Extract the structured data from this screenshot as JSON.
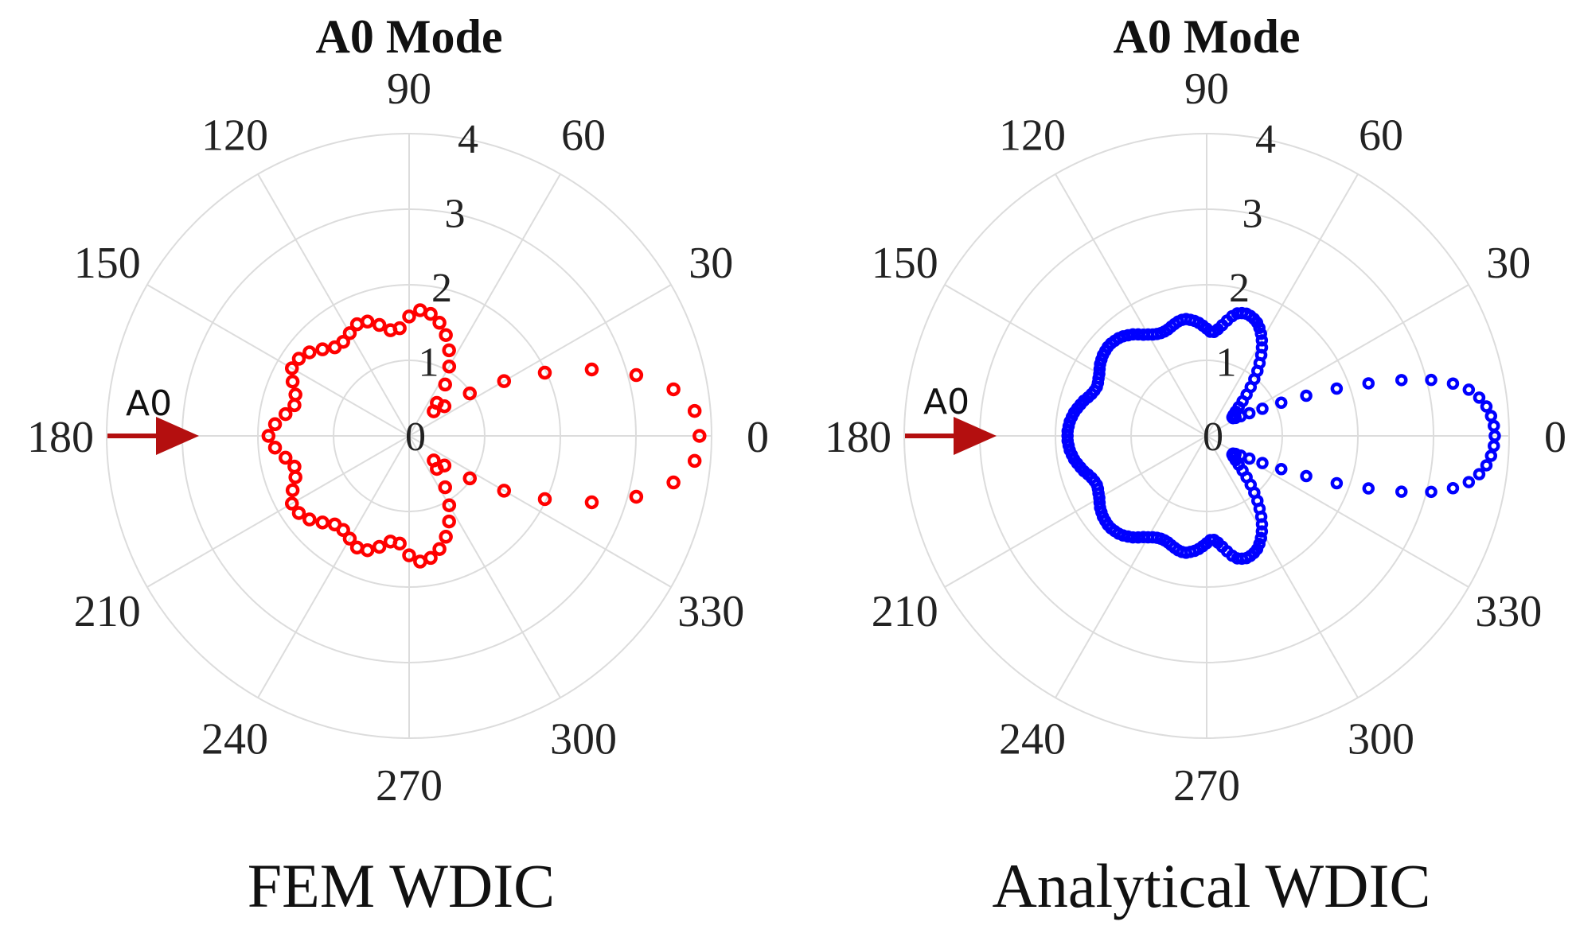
{
  "chart_data": [
    {
      "type": "scatter",
      "projection": "polar",
      "title": "A0 Mode",
      "caption": "FEM WDIC",
      "incident_wave": {
        "label": "A0",
        "direction_deg": 180,
        "color": "#b40f0f"
      },
      "rlim": [
        0,
        4
      ],
      "r_ticks": [
        "0",
        "1",
        "2",
        "3",
        "4"
      ],
      "theta_ticks": [
        "0",
        "30",
        "60",
        "90",
        "120",
        "150",
        "180",
        "210",
        "240",
        "270",
        "300",
        "330"
      ],
      "grid": true,
      "series": [
        {
          "name": "FEM WDIC",
          "marker": "open-circle",
          "color": "#ff0000",
          "theta_deg": [
            0,
            5,
            10,
            15,
            20,
            25,
            30,
            35,
            40,
            45,
            50,
            55,
            60,
            65,
            70,
            75,
            80,
            85,
            90,
            95,
            100,
            105,
            110,
            115,
            120,
            125,
            130,
            135,
            140,
            145,
            150,
            155,
            160,
            165,
            170,
            175,
            180,
            185,
            190,
            195,
            200,
            205,
            210,
            215,
            220,
            225,
            230,
            235,
            240,
            245,
            250,
            255,
            260,
            265,
            270,
            275,
            280,
            285,
            290,
            295,
            300,
            305,
            310,
            315,
            320,
            325,
            330,
            335,
            340,
            345,
            350,
            355
          ],
          "r": [
            3.84,
            3.79,
            3.55,
            3.11,
            2.57,
            1.98,
            1.45,
            0.98,
            0.61,
            0.46,
            0.57,
            0.83,
            1.06,
            1.25,
            1.42,
            1.55,
            1.64,
            1.67,
            1.58,
            1.43,
            1.42,
            1.52,
            1.61,
            1.63,
            1.57,
            1.52,
            1.53,
            1.62,
            1.72,
            1.78,
            1.79,
            1.7,
            1.6,
            1.57,
            1.66,
            1.78,
            1.86,
            1.78,
            1.66,
            1.57,
            1.6,
            1.7,
            1.79,
            1.78,
            1.72,
            1.62,
            1.53,
            1.52,
            1.57,
            1.63,
            1.61,
            1.52,
            1.42,
            1.43,
            1.58,
            1.67,
            1.64,
            1.55,
            1.42,
            1.25,
            1.06,
            0.83,
            0.57,
            0.46,
            0.61,
            0.98,
            1.45,
            1.98,
            2.57,
            3.11,
            3.55,
            3.79
          ]
        }
      ]
    },
    {
      "type": "scatter",
      "projection": "polar",
      "title": "A0 Mode",
      "caption": "Analytical WDIC",
      "incident_wave": {
        "label": "A0",
        "direction_deg": 180,
        "color": "#b40f0f"
      },
      "rlim": [
        0,
        4
      ],
      "r_ticks": [
        "0",
        "1",
        "2",
        "3",
        "4"
      ],
      "theta_ticks": [
        "0",
        "30",
        "60",
        "90",
        "120",
        "150",
        "180",
        "210",
        "240",
        "270",
        "300",
        "330"
      ],
      "grid": true,
      "series": [
        {
          "name": "Analytical WDIC",
          "marker": "open-circle",
          "color": "#0000ff",
          "theta_deg": [
            0,
            2,
            4,
            6,
            8,
            10,
            12,
            14,
            16,
            18,
            20,
            22,
            24,
            26,
            28,
            30,
            32,
            34,
            36,
            38,
            40,
            42,
            44,
            46,
            48,
            50,
            52,
            54,
            56,
            58,
            60,
            62,
            64,
            66,
            68,
            70,
            72,
            74,
            76,
            78,
            80,
            82,
            84,
            86,
            88,
            90,
            92,
            94,
            96,
            98,
            100,
            102,
            104,
            106,
            108,
            110,
            112,
            114,
            116,
            118,
            120,
            122,
            124,
            126,
            128,
            130,
            132,
            134,
            136,
            138,
            140,
            142,
            144,
            146,
            148,
            150,
            152,
            154,
            156,
            158,
            160,
            162,
            164,
            166,
            168,
            170,
            172,
            174,
            176,
            178,
            180,
            182,
            184,
            186,
            188,
            190,
            192,
            194,
            196,
            198,
            200,
            202,
            204,
            206,
            208,
            210,
            212,
            214,
            216,
            218,
            220,
            222,
            224,
            226,
            228,
            230,
            232,
            234,
            236,
            238,
            240,
            242,
            244,
            246,
            248,
            250,
            252,
            254,
            256,
            258,
            260,
            262,
            264,
            266,
            268,
            270,
            272,
            274,
            276,
            278,
            280,
            282,
            284,
            286,
            288,
            290,
            292,
            294,
            296,
            298,
            300,
            302,
            304,
            306,
            308,
            310,
            312,
            314,
            316,
            318,
            320,
            322,
            324,
            326,
            328,
            330,
            332,
            334,
            336,
            338,
            340,
            342,
            344,
            346,
            348,
            350,
            352,
            354,
            356,
            358
          ],
          "r": [
            3.81,
            3.8,
            3.77,
            3.72,
            3.64,
            3.52,
            3.33,
            3.06,
            2.68,
            2.25,
            1.83,
            1.42,
            1.08,
            0.82,
            0.64,
            0.52,
            0.45,
            0.42,
            0.42,
            0.45,
            0.5,
            0.57,
            0.66,
            0.76,
            0.87,
            0.98,
            1.09,
            1.19,
            1.29,
            1.38,
            1.46,
            1.53,
            1.59,
            1.64,
            1.67,
            1.69,
            1.7,
            1.69,
            1.67,
            1.62,
            1.55,
            1.48,
            1.42,
            1.38,
            1.38,
            1.42,
            1.46,
            1.5,
            1.53,
            1.55,
            1.57,
            1.57,
            1.56,
            1.54,
            1.52,
            1.5,
            1.49,
            1.49,
            1.5,
            1.52,
            1.55,
            1.58,
            1.62,
            1.66,
            1.69,
            1.72,
            1.74,
            1.75,
            1.76,
            1.76,
            1.75,
            1.74,
            1.72,
            1.7,
            1.67,
            1.64,
            1.62,
            1.6,
            1.59,
            1.6,
            1.62,
            1.65,
            1.69,
            1.72,
            1.75,
            1.78,
            1.8,
            1.82,
            1.83,
            1.84,
            1.84,
            1.84,
            1.83,
            1.82,
            1.8,
            1.78,
            1.75,
            1.72,
            1.69,
            1.65,
            1.62,
            1.6,
            1.59,
            1.6,
            1.62,
            1.64,
            1.67,
            1.7,
            1.72,
            1.74,
            1.75,
            1.76,
            1.76,
            1.75,
            1.74,
            1.72,
            1.69,
            1.66,
            1.62,
            1.58,
            1.55,
            1.52,
            1.5,
            1.49,
            1.49,
            1.5,
            1.52,
            1.54,
            1.56,
            1.57,
            1.57,
            1.55,
            1.53,
            1.5,
            1.46,
            1.42,
            1.38,
            1.38,
            1.42,
            1.48,
            1.55,
            1.62,
            1.67,
            1.69,
            1.7,
            1.69,
            1.67,
            1.64,
            1.59,
            1.53,
            1.46,
            1.38,
            1.29,
            1.19,
            1.09,
            0.98,
            0.87,
            0.76,
            0.66,
            0.57,
            0.5,
            0.45,
            0.42,
            0.42,
            0.45,
            0.52,
            0.64,
            0.82,
            1.08,
            1.42,
            1.83,
            2.25,
            2.68,
            3.06,
            3.33,
            3.52,
            3.64,
            3.72,
            3.77,
            3.8
          ]
        }
      ]
    }
  ]
}
